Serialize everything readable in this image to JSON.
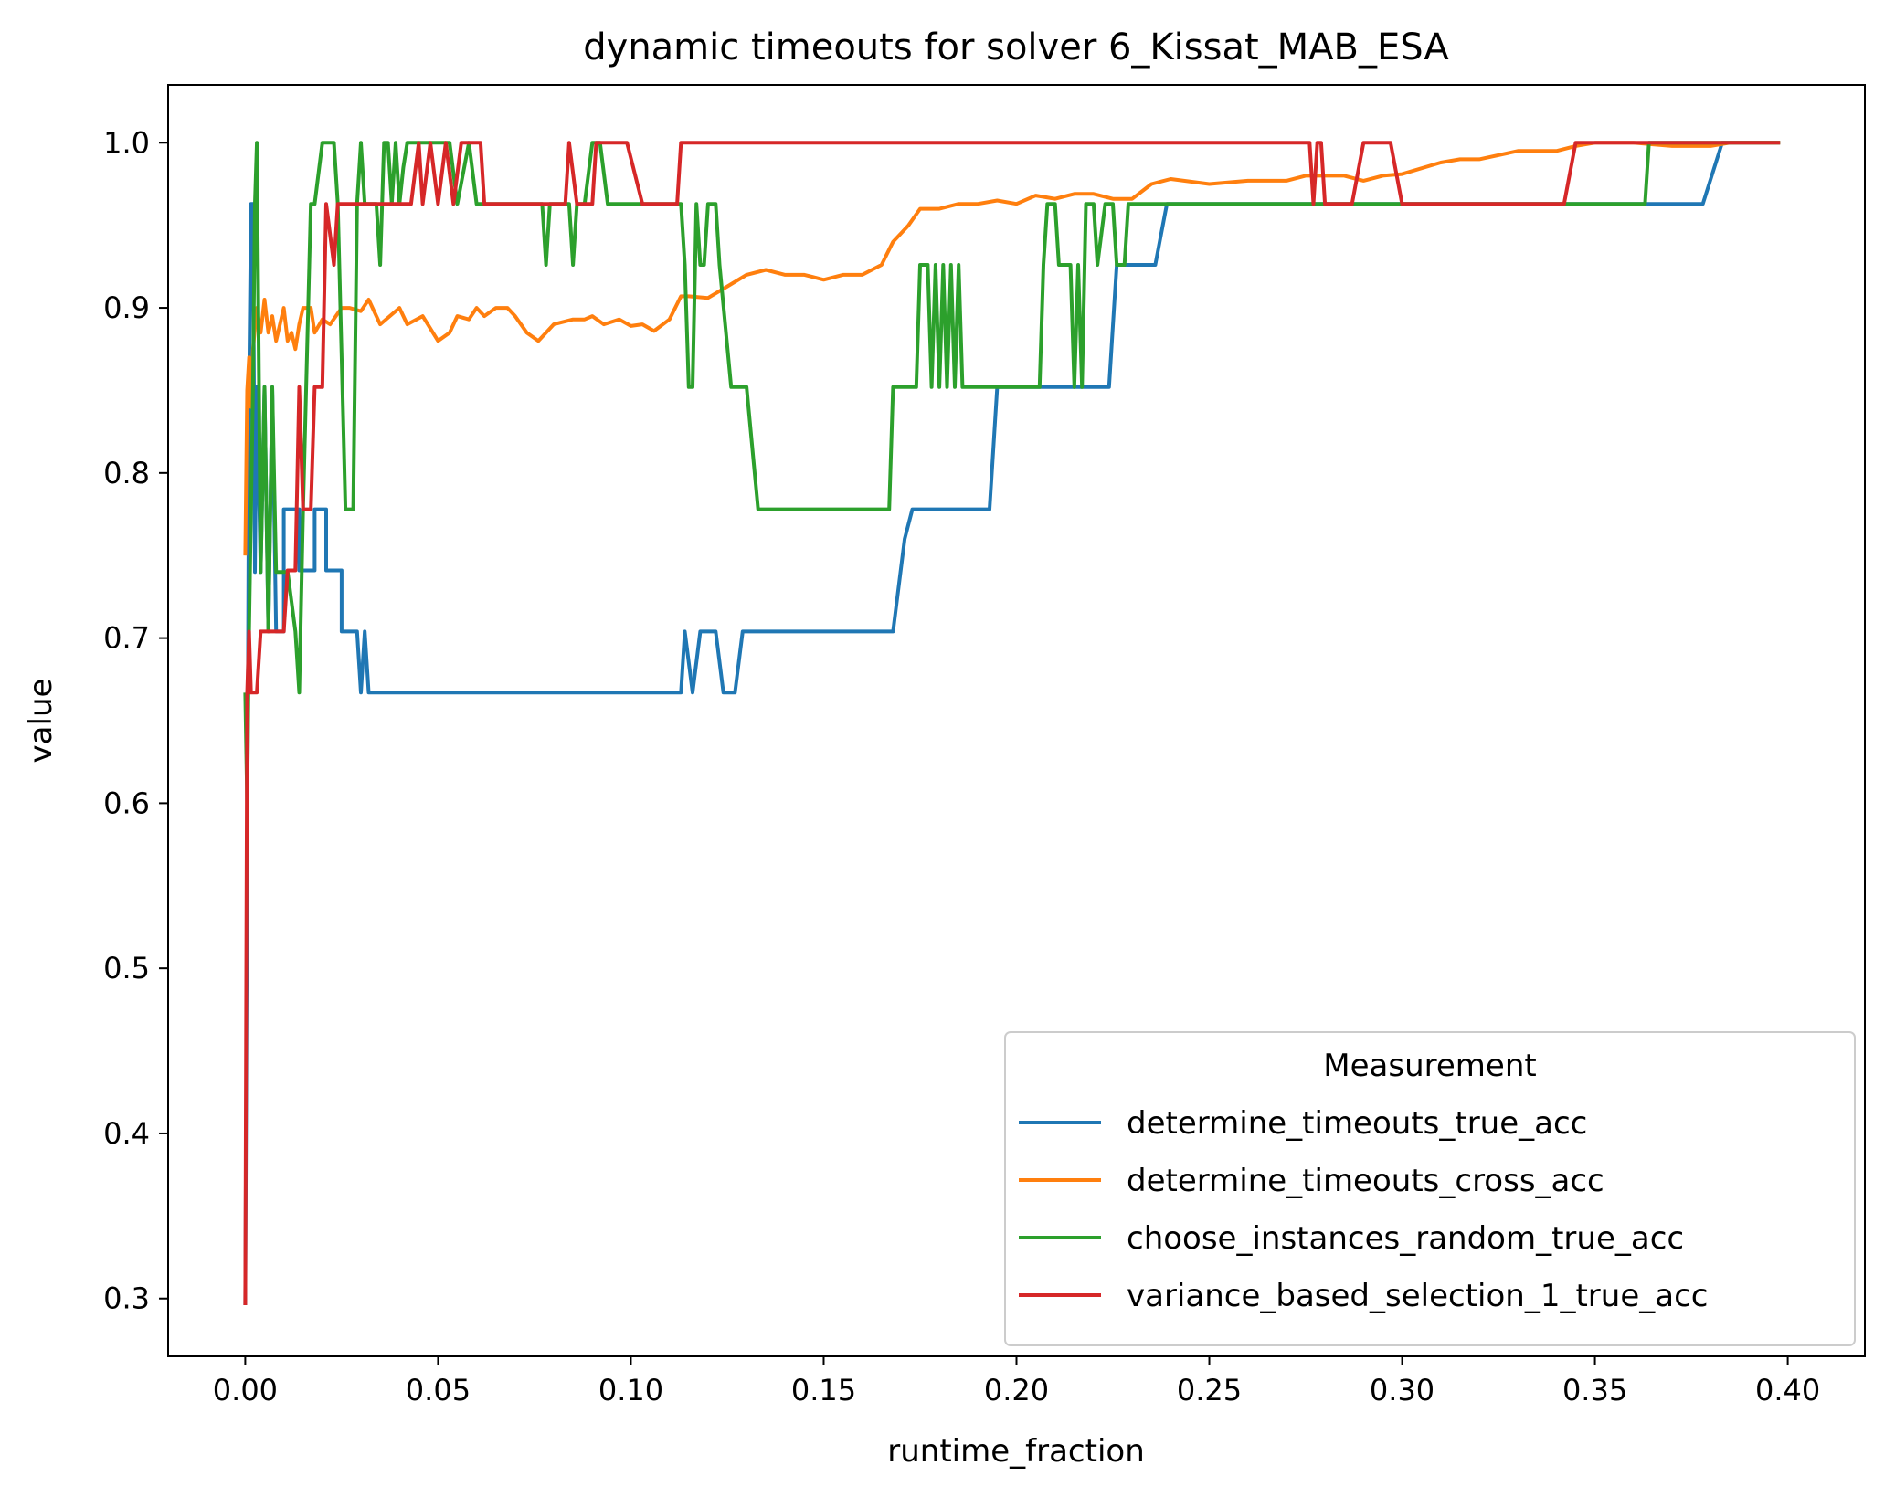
{
  "chart_data": {
    "type": "line",
    "title": "dynamic timeouts for solver 6_Kissat_MAB_ESA",
    "xlabel": "runtime_fraction",
    "ylabel": "value",
    "xlim": [
      -0.02,
      0.42
    ],
    "ylim": [
      0.265,
      1.035
    ],
    "xticks": [
      0.0,
      0.05,
      0.1,
      0.15,
      0.2,
      0.25,
      0.3,
      0.35,
      0.4
    ],
    "xtick_labels": [
      "0.00",
      "0.05",
      "0.10",
      "0.15",
      "0.20",
      "0.25",
      "0.30",
      "0.35",
      "0.40"
    ],
    "yticks": [
      0.3,
      0.4,
      0.5,
      0.6,
      0.7,
      0.8,
      0.9,
      1.0
    ],
    "ytick_labels": [
      "0.3",
      "0.4",
      "0.5",
      "0.6",
      "0.7",
      "0.8",
      "0.9",
      "1.0"
    ],
    "grid": false,
    "legend": {
      "title": "Measurement",
      "location": "lower right"
    },
    "series": [
      {
        "name": "determine_timeouts_true_acc",
        "color": "#1f77b4",
        "points": [
          [
            0.0,
            0.296
          ],
          [
            0.0005,
            0.55
          ],
          [
            0.001,
            0.85
          ],
          [
            0.0015,
            0.963
          ],
          [
            0.002,
            0.963
          ],
          [
            0.0025,
            0.74
          ],
          [
            0.003,
            0.852
          ],
          [
            0.004,
            0.74
          ],
          [
            0.005,
            0.852
          ],
          [
            0.006,
            0.704
          ],
          [
            0.007,
            0.852
          ],
          [
            0.008,
            0.704
          ],
          [
            0.01,
            0.704
          ],
          [
            0.01,
            0.778
          ],
          [
            0.014,
            0.778
          ],
          [
            0.014,
            0.741
          ],
          [
            0.018,
            0.741
          ],
          [
            0.018,
            0.778
          ],
          [
            0.021,
            0.778
          ],
          [
            0.021,
            0.741
          ],
          [
            0.025,
            0.741
          ],
          [
            0.025,
            0.704
          ],
          [
            0.029,
            0.704
          ],
          [
            0.03,
            0.667
          ],
          [
            0.031,
            0.704
          ],
          [
            0.032,
            0.667
          ],
          [
            0.113,
            0.667
          ],
          [
            0.114,
            0.704
          ],
          [
            0.116,
            0.667
          ],
          [
            0.118,
            0.704
          ],
          [
            0.122,
            0.704
          ],
          [
            0.124,
            0.667
          ],
          [
            0.127,
            0.667
          ],
          [
            0.129,
            0.704
          ],
          [
            0.168,
            0.704
          ],
          [
            0.171,
            0.76
          ],
          [
            0.173,
            0.778
          ],
          [
            0.193,
            0.778
          ],
          [
            0.195,
            0.852
          ],
          [
            0.224,
            0.852
          ],
          [
            0.226,
            0.926
          ],
          [
            0.236,
            0.926
          ],
          [
            0.239,
            0.963
          ],
          [
            0.378,
            0.963
          ],
          [
            0.383,
            1.0
          ],
          [
            0.398,
            1.0
          ]
        ]
      },
      {
        "name": "determine_timeouts_cross_acc",
        "color": "#ff7f0e",
        "points": [
          [
            0.0,
            0.75
          ],
          [
            0.0005,
            0.85
          ],
          [
            0.001,
            0.87
          ],
          [
            0.0015,
            0.84
          ],
          [
            0.002,
            0.875
          ],
          [
            0.003,
            0.9
          ],
          [
            0.004,
            0.885
          ],
          [
            0.005,
            0.905
          ],
          [
            0.006,
            0.885
          ],
          [
            0.007,
            0.895
          ],
          [
            0.008,
            0.88
          ],
          [
            0.009,
            0.89
          ],
          [
            0.01,
            0.9
          ],
          [
            0.011,
            0.88
          ],
          [
            0.012,
            0.885
          ],
          [
            0.013,
            0.875
          ],
          [
            0.014,
            0.89
          ],
          [
            0.015,
            0.9
          ],
          [
            0.017,
            0.9
          ],
          [
            0.018,
            0.885
          ],
          [
            0.02,
            0.893
          ],
          [
            0.022,
            0.89
          ],
          [
            0.025,
            0.9
          ],
          [
            0.027,
            0.9
          ],
          [
            0.03,
            0.898
          ],
          [
            0.032,
            0.905
          ],
          [
            0.035,
            0.89
          ],
          [
            0.04,
            0.9
          ],
          [
            0.042,
            0.89
          ],
          [
            0.046,
            0.895
          ],
          [
            0.05,
            0.88
          ],
          [
            0.053,
            0.885
          ],
          [
            0.055,
            0.895
          ],
          [
            0.058,
            0.893
          ],
          [
            0.06,
            0.9
          ],
          [
            0.062,
            0.895
          ],
          [
            0.065,
            0.9
          ],
          [
            0.068,
            0.9
          ],
          [
            0.07,
            0.895
          ],
          [
            0.073,
            0.885
          ],
          [
            0.076,
            0.88
          ],
          [
            0.078,
            0.885
          ],
          [
            0.08,
            0.89
          ],
          [
            0.085,
            0.893
          ],
          [
            0.088,
            0.893
          ],
          [
            0.09,
            0.895
          ],
          [
            0.093,
            0.89
          ],
          [
            0.097,
            0.893
          ],
          [
            0.1,
            0.889
          ],
          [
            0.103,
            0.89
          ],
          [
            0.106,
            0.886
          ],
          [
            0.11,
            0.893
          ],
          [
            0.113,
            0.907
          ],
          [
            0.115,
            0.907
          ],
          [
            0.12,
            0.906
          ],
          [
            0.125,
            0.913
          ],
          [
            0.13,
            0.92
          ],
          [
            0.135,
            0.923
          ],
          [
            0.14,
            0.92
          ],
          [
            0.145,
            0.92
          ],
          [
            0.15,
            0.917
          ],
          [
            0.155,
            0.92
          ],
          [
            0.16,
            0.92
          ],
          [
            0.165,
            0.926
          ],
          [
            0.168,
            0.94
          ],
          [
            0.17,
            0.945
          ],
          [
            0.172,
            0.95
          ],
          [
            0.175,
            0.96
          ],
          [
            0.18,
            0.96
          ],
          [
            0.185,
            0.963
          ],
          [
            0.19,
            0.963
          ],
          [
            0.195,
            0.965
          ],
          [
            0.2,
            0.963
          ],
          [
            0.205,
            0.968
          ],
          [
            0.21,
            0.966
          ],
          [
            0.215,
            0.969
          ],
          [
            0.22,
            0.969
          ],
          [
            0.225,
            0.966
          ],
          [
            0.23,
            0.966
          ],
          [
            0.235,
            0.975
          ],
          [
            0.24,
            0.978
          ],
          [
            0.25,
            0.975
          ],
          [
            0.26,
            0.977
          ],
          [
            0.27,
            0.977
          ],
          [
            0.275,
            0.98
          ],
          [
            0.28,
            0.98
          ],
          [
            0.285,
            0.98
          ],
          [
            0.29,
            0.977
          ],
          [
            0.295,
            0.98
          ],
          [
            0.3,
            0.981
          ],
          [
            0.31,
            0.988
          ],
          [
            0.315,
            0.99
          ],
          [
            0.32,
            0.99
          ],
          [
            0.33,
            0.995
          ],
          [
            0.34,
            0.995
          ],
          [
            0.345,
            0.998
          ],
          [
            0.35,
            1.0
          ],
          [
            0.36,
            1.0
          ],
          [
            0.365,
            0.999
          ],
          [
            0.37,
            0.998
          ],
          [
            0.38,
            0.998
          ],
          [
            0.385,
            1.0
          ],
          [
            0.398,
            1.0
          ]
        ]
      },
      {
        "name": "choose_instances_random_true_acc",
        "color": "#2ca02c",
        "points": [
          [
            0.0,
            0.667
          ],
          [
            0.0005,
            0.6
          ],
          [
            0.001,
            0.704
          ],
          [
            0.002,
            0.852
          ],
          [
            0.0025,
            0.963
          ],
          [
            0.003,
            1.0
          ],
          [
            0.004,
            0.74
          ],
          [
            0.005,
            0.852
          ],
          [
            0.006,
            0.704
          ],
          [
            0.007,
            0.852
          ],
          [
            0.008,
            0.74
          ],
          [
            0.01,
            0.74
          ],
          [
            0.011,
            0.74
          ],
          [
            0.013,
            0.704
          ],
          [
            0.014,
            0.667
          ],
          [
            0.015,
            0.778
          ],
          [
            0.017,
            0.963
          ],
          [
            0.018,
            0.963
          ],
          [
            0.02,
            1.0
          ],
          [
            0.023,
            1.0
          ],
          [
            0.024,
            0.963
          ],
          [
            0.026,
            0.778
          ],
          [
            0.028,
            0.778
          ],
          [
            0.029,
            0.963
          ],
          [
            0.03,
            1.0
          ],
          [
            0.031,
            0.963
          ],
          [
            0.034,
            0.963
          ],
          [
            0.035,
            0.926
          ],
          [
            0.036,
            1.0
          ],
          [
            0.037,
            1.0
          ],
          [
            0.038,
            0.963
          ],
          [
            0.039,
            1.0
          ],
          [
            0.04,
            0.963
          ],
          [
            0.041,
            0.985
          ],
          [
            0.042,
            1.0
          ],
          [
            0.05,
            1.0
          ],
          [
            0.053,
            1.0
          ],
          [
            0.055,
            0.963
          ],
          [
            0.058,
            1.0
          ],
          [
            0.06,
            0.963
          ],
          [
            0.077,
            0.963
          ],
          [
            0.078,
            0.926
          ],
          [
            0.079,
            0.963
          ],
          [
            0.084,
            0.963
          ],
          [
            0.085,
            0.926
          ],
          [
            0.086,
            0.963
          ],
          [
            0.088,
            0.963
          ],
          [
            0.09,
            1.0
          ],
          [
            0.092,
            1.0
          ],
          [
            0.094,
            0.963
          ],
          [
            0.113,
            0.963
          ],
          [
            0.114,
            0.926
          ],
          [
            0.115,
            0.852
          ],
          [
            0.116,
            0.852
          ],
          [
            0.117,
            0.963
          ],
          [
            0.118,
            0.926
          ],
          [
            0.119,
            0.926
          ],
          [
            0.12,
            0.963
          ],
          [
            0.122,
            0.963
          ],
          [
            0.123,
            0.926
          ],
          [
            0.126,
            0.852
          ],
          [
            0.13,
            0.852
          ],
          [
            0.133,
            0.778
          ],
          [
            0.167,
            0.778
          ],
          [
            0.168,
            0.852
          ],
          [
            0.174,
            0.852
          ],
          [
            0.175,
            0.926
          ],
          [
            0.177,
            0.926
          ],
          [
            0.178,
            0.852
          ],
          [
            0.179,
            0.926
          ],
          [
            0.18,
            0.852
          ],
          [
            0.181,
            0.926
          ],
          [
            0.182,
            0.852
          ],
          [
            0.183,
            0.926
          ],
          [
            0.184,
            0.852
          ],
          [
            0.185,
            0.926
          ],
          [
            0.186,
            0.852
          ],
          [
            0.206,
            0.852
          ],
          [
            0.207,
            0.926
          ],
          [
            0.208,
            0.963
          ],
          [
            0.21,
            0.963
          ],
          [
            0.211,
            0.926
          ],
          [
            0.214,
            0.926
          ],
          [
            0.215,
            0.852
          ],
          [
            0.216,
            0.926
          ],
          [
            0.217,
            0.852
          ],
          [
            0.218,
            0.963
          ],
          [
            0.22,
            0.963
          ],
          [
            0.221,
            0.926
          ],
          [
            0.223,
            0.963
          ],
          [
            0.225,
            0.963
          ],
          [
            0.226,
            0.926
          ],
          [
            0.228,
            0.926
          ],
          [
            0.229,
            0.963
          ],
          [
            0.363,
            0.963
          ],
          [
            0.364,
            1.0
          ],
          [
            0.398,
            1.0
          ]
        ]
      },
      {
        "name": "variance_based_selection_1_true_acc",
        "color": "#d62728",
        "points": [
          [
            0.0,
            0.296
          ],
          [
            0.0005,
            0.667
          ],
          [
            0.001,
            0.704
          ],
          [
            0.0015,
            0.667
          ],
          [
            0.003,
            0.667
          ],
          [
            0.004,
            0.704
          ],
          [
            0.01,
            0.704
          ],
          [
            0.011,
            0.741
          ],
          [
            0.013,
            0.741
          ],
          [
            0.014,
            0.852
          ],
          [
            0.015,
            0.778
          ],
          [
            0.017,
            0.778
          ],
          [
            0.018,
            0.852
          ],
          [
            0.02,
            0.852
          ],
          [
            0.021,
            0.963
          ],
          [
            0.023,
            0.926
          ],
          [
            0.024,
            0.963
          ],
          [
            0.043,
            0.963
          ],
          [
            0.045,
            1.0
          ],
          [
            0.046,
            0.963
          ],
          [
            0.048,
            1.0
          ],
          [
            0.05,
            0.963
          ],
          [
            0.052,
            1.0
          ],
          [
            0.054,
            0.963
          ],
          [
            0.056,
            1.0
          ],
          [
            0.061,
            1.0
          ],
          [
            0.062,
            0.963
          ],
          [
            0.083,
            0.963
          ],
          [
            0.084,
            1.0
          ],
          [
            0.086,
            0.963
          ],
          [
            0.09,
            0.963
          ],
          [
            0.091,
            1.0
          ],
          [
            0.099,
            1.0
          ],
          [
            0.103,
            0.963
          ],
          [
            0.112,
            0.963
          ],
          [
            0.113,
            1.0
          ],
          [
            0.276,
            1.0
          ],
          [
            0.277,
            0.963
          ],
          [
            0.278,
            1.0
          ],
          [
            0.279,
            1.0
          ],
          [
            0.28,
            0.963
          ],
          [
            0.287,
            0.963
          ],
          [
            0.29,
            1.0
          ],
          [
            0.297,
            1.0
          ],
          [
            0.3,
            0.963
          ],
          [
            0.342,
            0.963
          ],
          [
            0.345,
            1.0
          ],
          [
            0.398,
            1.0
          ]
        ]
      }
    ]
  }
}
